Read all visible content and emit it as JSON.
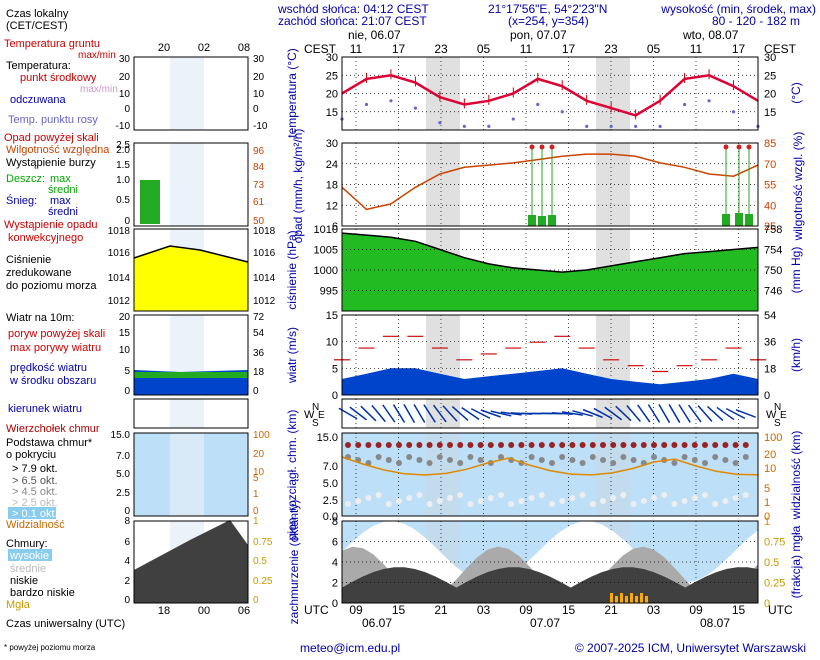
{
  "header": {
    "sunrise": "wschód słońca: 04:12 CEST",
    "sunset": "zachód słońca: 21:07 CEST",
    "coords": "21°17'56\"E, 54°2'23\"N",
    "grid": "(x=254, y=354)",
    "elev_title": "wysokość (min, środek, max)",
    "elev_values": "80 - 120 - 182 m"
  },
  "timeaxis": {
    "local_label": "CEST",
    "utc_label": "UTC",
    "local_hours": [
      "11",
      "17",
      "23",
      "05",
      "11",
      "17",
      "23",
      "05",
      "11",
      "17"
    ],
    "utc_hours": [
      "09",
      "15",
      "21",
      "03",
      "09",
      "15",
      "21",
      "03",
      "09",
      "15"
    ],
    "days_top": [
      "nie, 06.07",
      "pon, 07.07",
      "wto, 08.07"
    ],
    "days_bottom": [
      "06.07",
      "07.07",
      "08.07"
    ]
  },
  "legend": {
    "local_time": "Czas lokalny",
    "local_time2": "(CET/CEST)",
    "ground_temp": "Temperatura gruntu",
    "maxmin": "max/min",
    "temperature": "Temperatura:",
    "dew_mid": "punkt środkowy",
    "maxmin2": "max/min",
    "felt": "odczuwana",
    "dewpoint": "Temp. punktu rosy",
    "precip_over": "Opad powyżej skali",
    "humidity": "Wilgotność względna",
    "storm": "Wystąpienie burzy",
    "rain": "Deszcz:",
    "rain_max": "max",
    "rain_mid": "średni",
    "snow": "Śnieg:",
    "snow_max": "max",
    "snow_mid": "średni",
    "conv1": "Wystąpienie opadu",
    "conv2": "konwekcyjnego",
    "pressure1": "Ciśnienie",
    "pressure2": "zredukowane",
    "pressure3": "do poziomu morza",
    "wind_title": "Wiatr na 10m:",
    "gust_over": "poryw powyżej skali",
    "gust_max": "max porywy wiatru",
    "wind_speed1": "prędkość wiatru",
    "wind_speed2": "w środku obszaru",
    "wind_dir": "kierunek wiatru",
    "wind_chill": "Wierzchołek chmur",
    "cloud_base1": "Podstawa chmur*",
    "cloud_base2": "o pokryciu",
    "okt1": "> 7.9 okt.",
    "okt2": "> 6.5 okt.",
    "okt3": "> 4.5 okt.",
    "okt4": "> 2.5 okt.",
    "okt5": "> 0.1 okt.",
    "visibility": "Widzialność",
    "clouds": "Chmury:",
    "cl_high": "wysokie",
    "cl_mid": "średnie",
    "cl_low": "niskie",
    "cl_vlow": "bardzo niskie",
    "fog": "Mgła",
    "utc_time": "Czas uniwersalny (UTC)",
    "footnote": "* powyżej poziomu morza"
  },
  "mini_axis": {
    "top": [
      "20",
      "02",
      "08"
    ],
    "bottom": [
      "18",
      "00",
      "06"
    ]
  },
  "footer": {
    "email": "meteo@icm.edu.pl",
    "copyright": "© 2007-2025 ICM, Uniwersytet Warszawski"
  },
  "colors": {
    "temp": "#dd0033",
    "felt": "#0000aa",
    "dew": "#6666cc",
    "humid": "#cc4400",
    "rain": "#22aa22",
    "pressure_fill": "#22bb22",
    "wind": "#0044cc",
    "night": "#e0e0e0",
    "sky": "#bde0f8",
    "cloud_dark": "#404040"
  },
  "chart_data": [
    {
      "type": "line",
      "id": "temperature",
      "ylabel_left": "temperatura (°C)",
      "ylabel_right": "(°C)",
      "ylim": [
        10,
        30
      ],
      "yticks": [
        15,
        20,
        25,
        30
      ],
      "x_utc_hours": [
        0,
        6,
        12,
        18,
        24,
        30,
        36,
        42,
        48,
        54
      ],
      "series": [
        {
          "name": "punkt środkowy",
          "values": [
            20,
            24,
            25,
            23,
            19,
            17,
            18,
            20,
            24,
            22,
            18,
            16,
            14,
            18,
            24,
            25,
            22,
            18
          ]
        }
      ]
    },
    {
      "type": "line",
      "id": "precip_humidity",
      "ylabel_left": "opad (mm/h, kg/m²/h)",
      "ylabel_right": "wilgotność wzgl. (%)",
      "ylim_left": [
        6,
        30
      ],
      "yticks_left": [
        6,
        12,
        18,
        24,
        30
      ],
      "yticks_right": [
        25,
        40,
        55,
        70,
        85,
        100
      ],
      "series": [
        {
          "name": "wilgotność względna",
          "values": [
            60,
            40,
            45,
            60,
            72,
            78,
            80,
            82,
            85,
            88,
            90,
            90,
            88,
            82,
            78,
            72,
            70,
            80
          ]
        }
      ]
    },
    {
      "type": "area",
      "id": "pressure",
      "ylabel_left": "ciśnienie (hPa)",
      "ylabel_right": "(mm Hg)",
      "ylim": [
        990,
        1010
      ],
      "yticks_left": [
        995,
        1000,
        1005,
        1010
      ],
      "yticks_right": [
        746,
        750,
        754,
        758
      ],
      "series": [
        {
          "name": "ciśnienie",
          "values": [
            1009,
            1008.5,
            1008,
            1007,
            1005,
            1003,
            1001.5,
            1000.5,
            1000,
            999.5,
            1000,
            1001,
            1002,
            1003,
            1004,
            1004.5,
            1005,
            1005.5
          ]
        }
      ]
    },
    {
      "type": "area",
      "id": "wind",
      "ylabel_left": "wiatr (m/s)",
      "ylabel_right": "(km/h)",
      "ylim": [
        0,
        15
      ],
      "yticks_left": [
        0,
        5,
        10,
        15
      ],
      "yticks_right": [
        0,
        18,
        36,
        54
      ],
      "series": [
        {
          "name": "prędkość wiatru",
          "values": [
            3,
            4,
            5,
            5,
            4,
            3,
            3.5,
            4,
            4.5,
            5,
            4,
            3,
            2.5,
            2,
            2.5,
            3,
            4,
            3
          ]
        }
      ]
    },
    {
      "type": "scatter",
      "id": "cloudbase",
      "ylabel_left": "pion. rozciągł. chm. (km)",
      "ylabel_right": "widzialność (km)",
      "yticks_left": [
        0,
        2.5,
        5.0,
        7.0,
        15.0
      ],
      "yticks_right": [
        0,
        1,
        5,
        10,
        20,
        100
      ]
    },
    {
      "type": "area",
      "id": "clouds",
      "ylabel_left": "zachmurzenie (oktanty)",
      "ylabel_right": "(frakcja) mgła",
      "ylim": [
        0,
        8
      ],
      "yticks_left": [
        0,
        2,
        4,
        6,
        8
      ],
      "yticks_right": [
        0,
        0.25,
        0.5,
        0.75,
        1
      ]
    }
  ]
}
